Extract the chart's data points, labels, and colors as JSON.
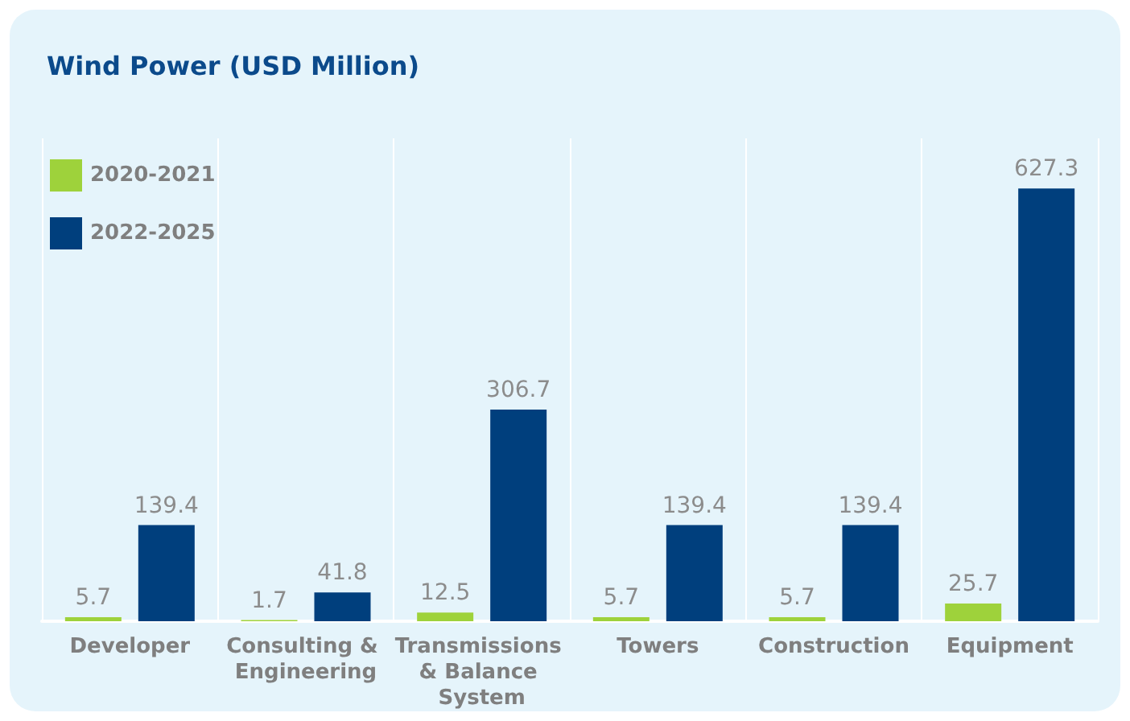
{
  "chart_data": {
    "type": "bar",
    "title": "Wind Power (USD Million)",
    "categories": [
      "Developer",
      "Consulting & Engineering",
      "Transmissions & Balance System",
      "Towers",
      "Construction",
      "Equipment"
    ],
    "series": [
      {
        "name": "2020-2021",
        "color": "#9ed23b",
        "values": [
          5.7,
          1.7,
          12.5,
          5.7,
          5.7,
          25.7
        ]
      },
      {
        "name": "2022-2025",
        "color": "#003f7d",
        "values": [
          139.4,
          41.8,
          306.7,
          139.4,
          139.4,
          627.3
        ]
      }
    ],
    "data_labels": true,
    "legend": "top left",
    "grid": "x"
  }
}
